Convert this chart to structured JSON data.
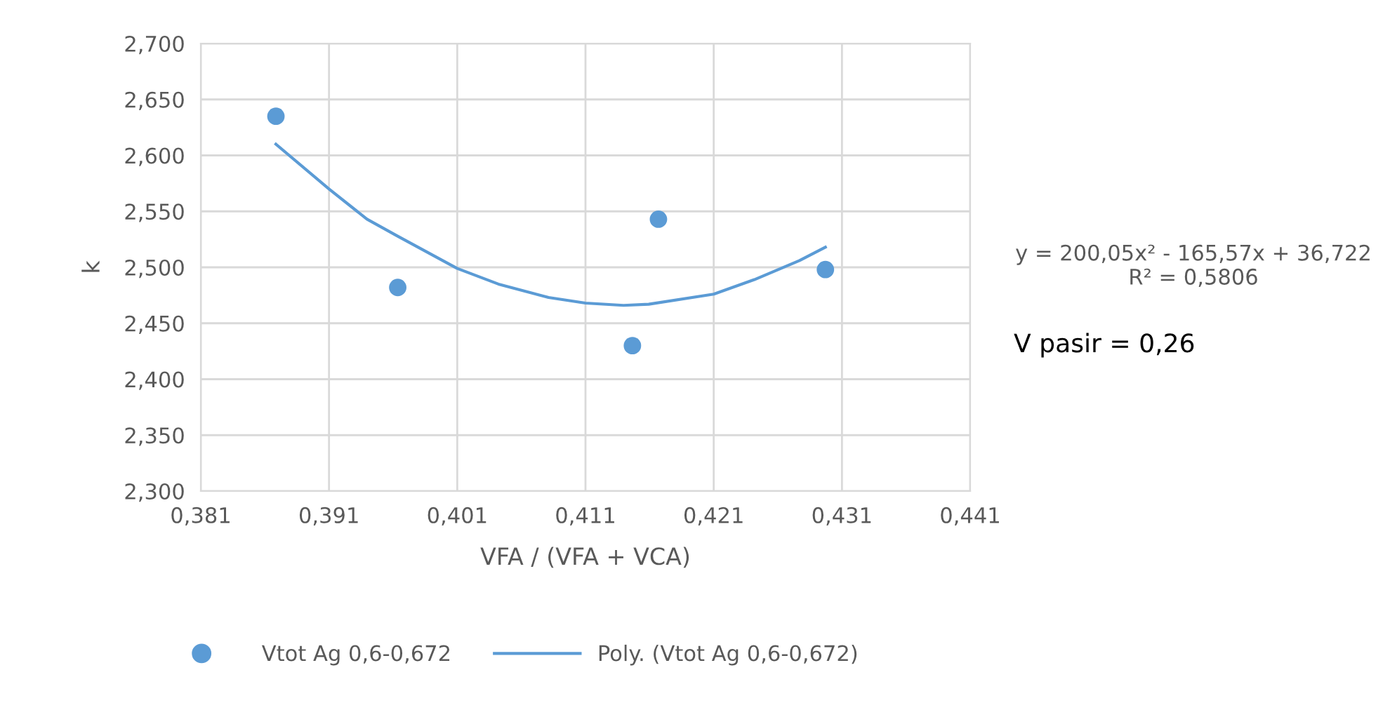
{
  "chart_data": {
    "type": "scatter",
    "xlabel": "VFA / (VFA + VCA)",
    "ylabel": "k",
    "xlim": [
      0.381,
      0.441
    ],
    "xticks": [
      {
        "value": 0.381,
        "label": "0,381"
      },
      {
        "value": 0.391,
        "label": "0,391"
      },
      {
        "value": 0.401,
        "label": "0,401"
      },
      {
        "value": 0.411,
        "label": "0,411"
      },
      {
        "value": 0.421,
        "label": "0,421"
      },
      {
        "value": 0.431,
        "label": "0,431"
      },
      {
        "value": 0.441,
        "label": "0,441"
      }
    ],
    "ylim": [
      2.3,
      2.7
    ],
    "yticks": [
      {
        "value": 2.3,
        "label": "2,300"
      },
      {
        "value": 2.35,
        "label": "2,350"
      },
      {
        "value": 2.4,
        "label": "2,400"
      },
      {
        "value": 2.45,
        "label": "2,450"
      },
      {
        "value": 2.5,
        "label": "2,500"
      },
      {
        "value": 2.55,
        "label": "2,550"
      },
      {
        "value": 2.6,
        "label": "2,600"
      },
      {
        "value": 2.65,
        "label": "2,650"
      },
      {
        "value": 2.7,
        "label": "2,700"
      }
    ],
    "grid": true,
    "legend": "bottom",
    "series": [
      {
        "name": "Vtot Ag 0,6-0,672",
        "marker": "circle",
        "color": "#5b9bd5",
        "x": [
          0.38686,
          0.39636,
          0.41669,
          0.41466,
          0.42971
        ],
        "values": [
          2.635,
          2.482,
          2.543,
          2.43,
          2.498
        ]
      },
      {
        "name": "Poly. (Vtot Ag 0,6-0,672)",
        "type": "line",
        "marker": "none",
        "color": "#5b9bd5",
        "line_style": "solid",
        "x": [
          0.38686,
          0.391,
          0.39396,
          0.39633,
          0.401,
          0.40421,
          0.40812,
          0.411,
          0.41397,
          0.41593,
          0.421,
          0.42417,
          0.42769,
          0.42971
        ],
        "values": [
          2.61,
          2.57,
          2.543,
          2.528,
          2.499,
          2.485,
          2.473,
          2.468,
          2.466,
          2.467,
          2.476,
          2.489,
          2.506,
          2.518
        ]
      }
    ],
    "annotations": [
      "y = 200,05x² - 165,57x + 36,722\nR² = 0,5806",
      "V pasir = 0,26"
    ]
  }
}
